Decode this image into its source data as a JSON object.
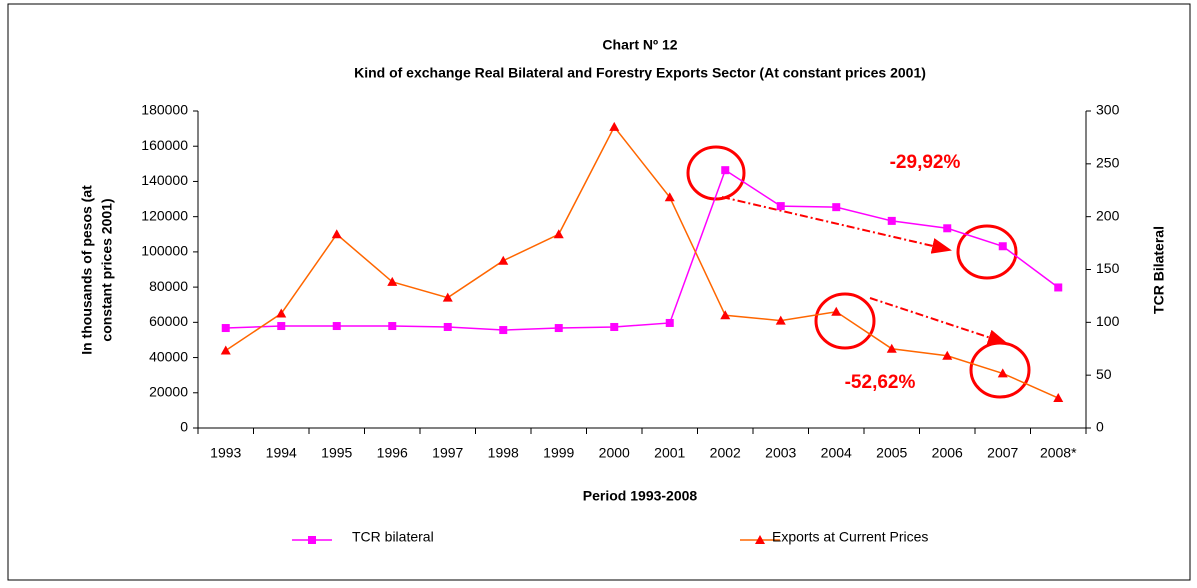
{
  "chart_data": {
    "type": "line",
    "title": "Chart Nº 12",
    "subtitle": "Kind of exchange Real Bilateral and Forestry Exports Sector (At constant prices 2001)",
    "xlabel": "Period 1993-2008",
    "ylabel": [
      "In thousands of pesos (at",
      "constant prices 2001)"
    ],
    "y2label": "TCR Bilateral",
    "categories": [
      "1993",
      "1994",
      "1995",
      "1996",
      "1997",
      "1998",
      "1999",
      "2000",
      "2001",
      "2002",
      "2003",
      "2004",
      "2005",
      "2006",
      "2007",
      "2008*"
    ],
    "ylim": [
      0,
      180000
    ],
    "yticks": [
      0,
      20000,
      40000,
      60000,
      80000,
      100000,
      120000,
      140000,
      160000,
      180000
    ],
    "y2lim": [
      0,
      300
    ],
    "y2ticks": [
      0,
      50,
      100,
      150,
      200,
      250,
      300
    ],
    "series": [
      {
        "name": "TCR bilateral",
        "color": "#ff00ff",
        "marker": "square",
        "marker_color": "#ff00ff",
        "axis": "y2",
        "values": [
          94.6,
          96.5,
          96.5,
          96.5,
          95.6,
          92.7,
          94.6,
          95.6,
          99.4,
          244,
          210,
          209,
          196,
          189,
          172,
          133
        ]
      },
      {
        "name": "Exports at Current Prices",
        "color": "#ff6600",
        "marker": "triangle",
        "marker_color": "#ff0000",
        "axis": "y",
        "values": [
          44000,
          65000,
          110000,
          83000,
          74000,
          95000,
          110000,
          171000,
          131000,
          64000,
          61000,
          66000,
          45000,
          41000,
          31000,
          17000
        ]
      }
    ],
    "annotations": [
      "-29,92%",
      "-52,62%"
    ]
  }
}
